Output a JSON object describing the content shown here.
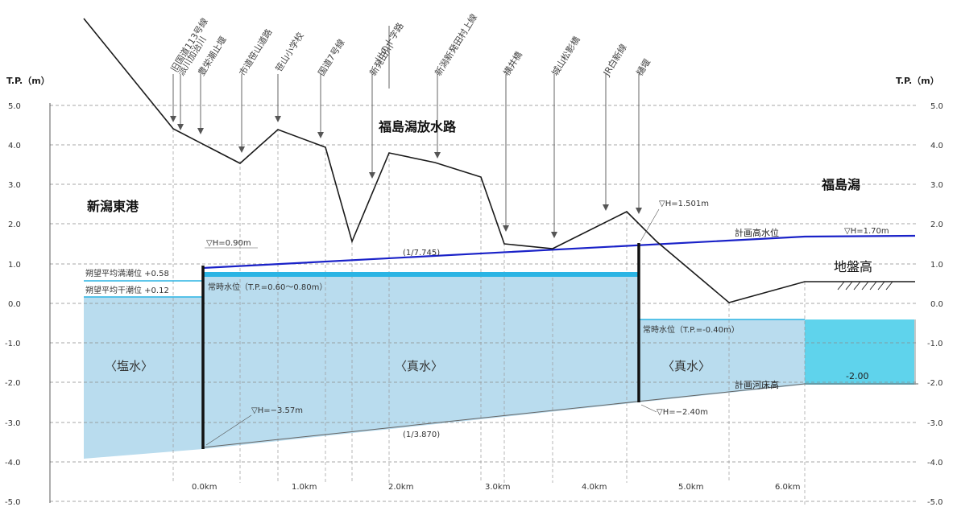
{
  "axis": {
    "left_title": "T.P.（m）",
    "right_title": "T.P.（m）",
    "y_ticks": [
      "5.0",
      "4.0",
      "3.0",
      "2.0",
      "1.0",
      "0.0",
      "-1.0",
      "-2.0",
      "-3.0",
      "-4.0",
      "-5.0"
    ],
    "x_ticks": [
      "0.0km",
      "1.0km",
      "2.0km",
      "3.0km",
      "4.0km",
      "5.0km",
      "6.0km"
    ]
  },
  "landmarks": [
    "旧国道113号線",
    "派川加治川",
    "豊栄潮止堰",
    "市道笹山道路",
    "笹山小学校",
    "国道7号線",
    "新発田川",
    "川の十字路",
    "新潟新発田村上線",
    "横井橋",
    "城山松影橋",
    "JR白新線",
    "樋堰"
  ],
  "labels": {
    "channel": "福島潟放水路",
    "port": "新潟東港",
    "lagoon": "福島潟",
    "ground": "地盤高",
    "planned_hwl": "計画高水位",
    "planned_bed": "計画河床高",
    "salt": "〈塩水〉",
    "fresh1": "〈真水〉",
    "fresh2": "〈真水〉",
    "hwl_tide": "朔望平均満潮位 +0.58",
    "lwl_tide": "朔望平均干潮位 +0.12",
    "normal_wl": "常時水位（T.P.=0.60～0.80m）",
    "normal_wl2": "常時水位（T.P.=-0.40m）",
    "h090": "▽H=0.90m",
    "h1501": "▽H=1.501m",
    "h170": "▽H=1.70m",
    "hm357": "▽H=−3.57m",
    "hm240": "▽H=−2.40m",
    "grad_top": "(1/7.745)",
    "grad_bottom": "(1/3.870)",
    "lagoon_depth": "-2.00"
  },
  "colors": {
    "water": "#b9dcee",
    "lagoon_water": "#5fd3ec",
    "hwl_line": "#1a22c8",
    "normal_line": "#2ab4e4",
    "ground_line": "#1a1a1a"
  }
}
